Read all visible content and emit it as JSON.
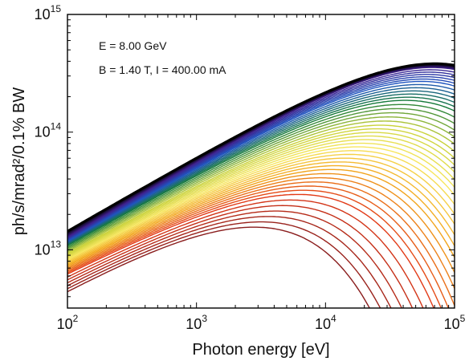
{
  "chart_data": {
    "type": "line",
    "title": "",
    "xlabel": "Photon energy [eV]",
    "ylabel": "ph/s/mrad²/0.1% BW",
    "x_scale": "log",
    "y_scale": "log",
    "xlim": [
      100,
      100000
    ],
    "ylim": [
      3200000000000.0,
      1000000000000000.0
    ],
    "x_ticks": [
      {
        "base": "10",
        "exp": "2",
        "value": 100
      },
      {
        "base": "10",
        "exp": "3",
        "value": 1000
      },
      {
        "base": "10",
        "exp": "4",
        "value": 10000
      },
      {
        "base": "10",
        "exp": "5",
        "value": 100000
      }
    ],
    "y_ticks": [
      {
        "base": "10",
        "exp": "13",
        "value": 10000000000000.0
      },
      {
        "base": "10",
        "exp": "14",
        "value": 100000000000000.0
      },
      {
        "base": "10",
        "exp": "15",
        "value": 1000000000000000.0
      }
    ],
    "grid": false,
    "annotations": [
      "E = 8.00 GeV",
      "B = 1.40 T, I = 400.00 mA"
    ],
    "series_style": "family of curves, colour gradient from dark red (lowest) through orange, yellow, green, blue to violet, with a black envelope curve on top",
    "series": [
      {
        "color": "#000000",
        "peak_energy_ev": 48000,
        "peak_flux": 480000000000000.0,
        "flux_at_100ev": 14500000000000.0
      },
      {
        "color": "#3f1f8c",
        "peak_energy_ev": 45000,
        "peak_flux": 440000000000000.0,
        "flux_at_100ev": 13000000000000.0
      },
      {
        "color": "#1f55c0",
        "peak_energy_ev": 38000,
        "peak_flux": 340000000000000.0,
        "flux_at_100ev": 12000000000000.0
      },
      {
        "color": "#167a3a",
        "peak_energy_ev": 30000,
        "peak_flux": 240000000000000.0,
        "flux_at_100ev": 11000000000000.0
      },
      {
        "color": "#c9d23a",
        "peak_energy_ev": 20000,
        "peak_flux": 150000000000000.0,
        "flux_at_100ev": 9500000000000.0
      },
      {
        "color": "#f7e65e",
        "peak_energy_ev": 14000,
        "peak_flux": 100000000000000.0,
        "flux_at_100ev": 8500000000000.0
      },
      {
        "color": "#f2a41c",
        "peak_energy_ev": 9000,
        "peak_flux": 65000000000000.0,
        "flux_at_100ev": 7500000000000.0
      },
      {
        "color": "#e23a17",
        "peak_energy_ev": 5000,
        "peak_flux": 40000000000000.0,
        "flux_at_100ev": 6500000000000.0
      },
      {
        "color": "#8a1d1d",
        "peak_energy_ev": 2000,
        "peak_flux": 20000000000000.0,
        "flux_at_100ev": 4800000000000.0
      }
    ]
  }
}
